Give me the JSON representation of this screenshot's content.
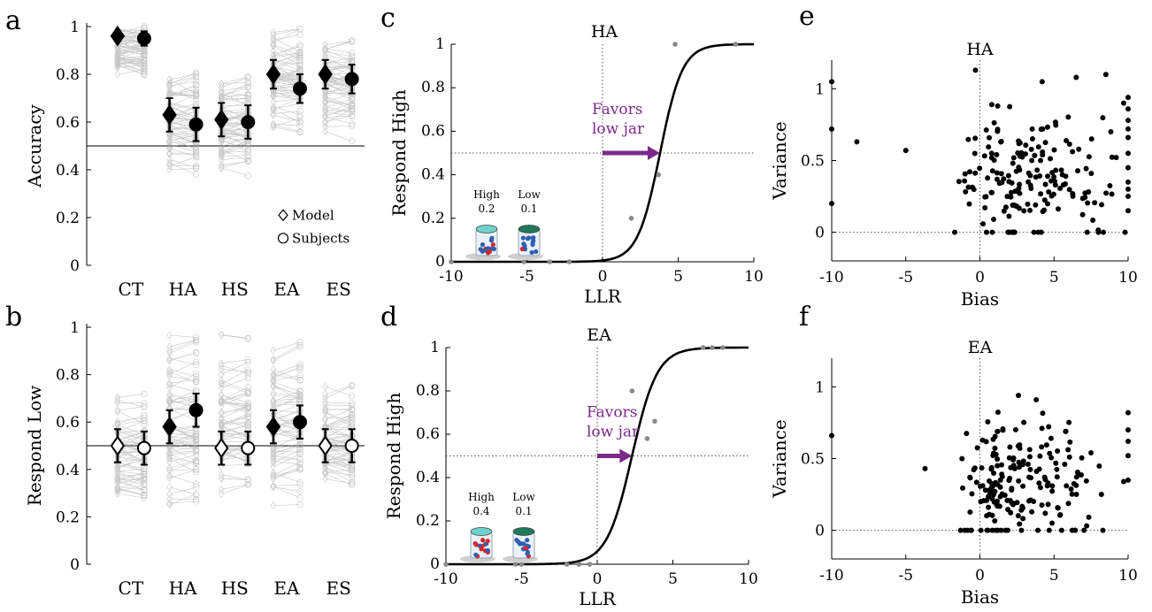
{
  "panels": {
    "a": "a",
    "b": "b",
    "c": "c",
    "d": "d",
    "e": "e",
    "f": "f"
  },
  "chart_data": [
    {
      "id": "a",
      "type": "scatter",
      "ylabel": "Accuracy",
      "xlabel": "",
      "categories": [
        "CT",
        "HA",
        "HS",
        "EA",
        "ES"
      ],
      "ylim": [
        0,
        1
      ],
      "yticks": [
        0,
        0.2,
        0.4,
        0.6,
        0.8,
        1
      ],
      "ytick_labels": [
        "0",
        "0.2",
        "0.4",
        "0.6",
        "0.8",
        "1"
      ],
      "refline": 0.5,
      "series": [
        {
          "name": "Model",
          "marker": "diamond",
          "filled": true,
          "values": [
            0.96,
            0.63,
            0.61,
            0.8,
            0.8
          ],
          "err": [
            0.02,
            0.07,
            0.07,
            0.06,
            0.06
          ]
        },
        {
          "name": "Subjects",
          "marker": "circle",
          "filled": true,
          "values": [
            0.95,
            0.59,
            0.6,
            0.74,
            0.78
          ],
          "err": [
            0.03,
            0.07,
            0.07,
            0.06,
            0.06
          ]
        }
      ],
      "individual_ranges": [
        [
          0.79,
          1.0
        ],
        [
          0.38,
          0.81
        ],
        [
          0.36,
          0.79
        ],
        [
          0.47,
          0.99
        ],
        [
          0.52,
          0.94
        ]
      ],
      "legend": [
        "Model",
        "Subjects"
      ],
      "legend_position": "bottom-right"
    },
    {
      "id": "b",
      "type": "scatter",
      "ylabel": "Respond Low",
      "xlabel": "",
      "categories": [
        "CT",
        "HA",
        "HS",
        "EA",
        "ES"
      ],
      "ylim": [
        0,
        1
      ],
      "yticks": [
        0,
        0.2,
        0.4,
        0.6,
        0.8,
        1
      ],
      "ytick_labels": [
        "0",
        "0.2",
        "0.4",
        "0.6",
        "0.8",
        "1"
      ],
      "refline": 0.5,
      "series": [
        {
          "name": "Model",
          "marker": "diamond",
          "filled": [
            false,
            true,
            false,
            true,
            false
          ],
          "values": [
            0.5,
            0.58,
            0.49,
            0.58,
            0.5
          ],
          "err": [
            0.07,
            0.07,
            0.07,
            0.07,
            0.07
          ]
        },
        {
          "name": "Subjects",
          "marker": "circle",
          "filled": [
            false,
            true,
            false,
            true,
            false
          ],
          "values": [
            0.49,
            0.65,
            0.49,
            0.6,
            0.5
          ],
          "err": [
            0.07,
            0.07,
            0.07,
            0.07,
            0.07
          ]
        }
      ],
      "individual_ranges": [
        [
          0.28,
          0.72
        ],
        [
          0.15,
          1.0
        ],
        [
          0.26,
          1.0
        ],
        [
          0.2,
          0.96
        ],
        [
          0.28,
          0.79
        ]
      ]
    },
    {
      "id": "c",
      "type": "line",
      "title": "HA",
      "xlabel": "LLR",
      "ylabel": "Respond High",
      "xlim": [
        -10,
        10
      ],
      "ylim": [
        0,
        1
      ],
      "xticks": [
        -10,
        -5,
        0,
        5,
        10
      ],
      "xtick_labels": [
        "-10",
        "-5",
        "0",
        "5",
        "10"
      ],
      "yticks": [
        0,
        0.2,
        0.4,
        0.6,
        0.8,
        1
      ],
      "ytick_labels": [
        "0",
        "0.2",
        "0.4",
        "0.6",
        "0.8",
        "1"
      ],
      "curve": {
        "midpoint": 3.8,
        "slope": 1.35
      },
      "points": {
        "x": [
          -10,
          -5.2,
          -3.5,
          -2.2,
          1.9,
          3.7,
          4.8,
          8.8
        ],
        "y": [
          0.0,
          0.0,
          0.0,
          0.0,
          0.2,
          0.4,
          1.0,
          1.0
        ]
      },
      "annotation": {
        "line1": "Favors",
        "line2": "low jar",
        "arrow_from": 0,
        "arrow_to": 3.8,
        "y": 0.5
      },
      "jars": {
        "high_label": "High",
        "high_value": "0.2",
        "low_label": "Low",
        "low_value": "0.1",
        "high_color": "#6fd3cc",
        "low_color": "#1e7a5a",
        "ball_red": "#d62728",
        "ball_blue": "#2f5fb3"
      }
    },
    {
      "id": "d",
      "type": "line",
      "title": "EA",
      "xlabel": "LLR",
      "ylabel": "Respond High",
      "xlim": [
        -10,
        10
      ],
      "ylim": [
        0,
        1
      ],
      "xticks": [
        -10,
        -5,
        0,
        5,
        10
      ],
      "xtick_labels": [
        "-10",
        "-5",
        "0",
        "5",
        "10"
      ],
      "yticks": [
        0,
        0.2,
        0.4,
        0.6,
        0.8,
        1
      ],
      "ytick_labels": [
        "0",
        "0.2",
        "0.4",
        "0.6",
        "0.8",
        "1"
      ],
      "curve": {
        "midpoint": 2.3,
        "slope": 1.2
      },
      "points": {
        "x": [
          -10,
          -5.4,
          -5.0,
          -2.0,
          -1.2,
          -0.5,
          2.3,
          3.3,
          3.8,
          7.0,
          7.6,
          8.3
        ],
        "y": [
          0.0,
          0.0,
          0.0,
          0.0,
          0.0,
          0.0,
          0.8,
          0.58,
          0.66,
          1.0,
          1.0,
          1.0
        ]
      },
      "annotation": {
        "line1": "Favors",
        "line2": "low jar",
        "arrow_from": 0,
        "arrow_to": 2.3,
        "y": 0.5
      },
      "jars": {
        "high_label": "High",
        "high_value": "0.4",
        "low_label": "Low",
        "low_value": "0.1",
        "high_color": "#6fd3cc",
        "low_color": "#1e7a5a",
        "ball_red": "#d62728",
        "ball_blue": "#2f5fb3"
      }
    },
    {
      "id": "e",
      "type": "scatter",
      "title": "HA",
      "xlabel": "Bias",
      "ylabel": "Variance",
      "xlim": [
        -10,
        10
      ],
      "ylim": [
        -0.2,
        1.2
      ],
      "xticks": [
        -10,
        -5,
        0,
        5,
        10
      ],
      "xtick_labels": [
        "-10",
        "-5",
        "0",
        "5",
        "10"
      ],
      "yticks": [
        0,
        0.5,
        1
      ],
      "ytick_labels": [
        "0",
        "0.5",
        "1"
      ],
      "seed": 7,
      "fixed_points": [
        [
          -10,
          1.05
        ],
        [
          -10,
          0.72
        ],
        [
          -10,
          0.2
        ],
        [
          -8.3,
          0.63
        ],
        [
          -5,
          0.57
        ],
        [
          -0.3,
          1.13
        ],
        [
          0.8,
          0.89
        ],
        [
          1.2,
          0.88
        ],
        [
          4.2,
          1.05
        ],
        [
          6.5,
          1.08
        ],
        [
          8.5,
          1.1
        ],
        [
          9.7,
          0.9
        ],
        [
          10,
          0.94
        ],
        [
          10,
          0.86
        ],
        [
          10,
          0.78
        ],
        [
          10,
          0.72
        ],
        [
          10,
          0.66
        ],
        [
          10,
          0.55
        ],
        [
          10,
          0.45
        ],
        [
          10,
          0.35
        ],
        [
          10,
          0.3
        ],
        [
          10,
          0.25
        ],
        [
          10,
          0.15
        ],
        [
          9.8,
          0.0
        ],
        [
          -1.7,
          0.0
        ]
      ],
      "cloud": {
        "count": 175,
        "x_min": -1.8,
        "x_max": 9.5,
        "x_mode": 1.5,
        "y_min": 0.0,
        "y_max": 0.92,
        "y_mode": 0.33
      }
    },
    {
      "id": "f",
      "type": "scatter",
      "title": "EA",
      "xlabel": "Bias",
      "ylabel": "Variance",
      "xlim": [
        -10,
        10
      ],
      "ylim": [
        -0.2,
        1.2
      ],
      "xticks": [
        -10,
        -5,
        0,
        5,
        10
      ],
      "xtick_labels": [
        "-10",
        "-5",
        "0",
        "5",
        "10"
      ],
      "yticks": [
        0,
        0.5,
        1
      ],
      "ytick_labels": [
        "0",
        "0.5",
        "1"
      ],
      "seed": 13,
      "fixed_points": [
        [
          -10,
          0.66
        ],
        [
          -3.7,
          0.43
        ],
        [
          2.6,
          0.94
        ],
        [
          3.8,
          0.91
        ],
        [
          5.8,
          0.69
        ],
        [
          7.5,
          0.54
        ],
        [
          10,
          0.82
        ],
        [
          10,
          0.7
        ],
        [
          10,
          0.62
        ],
        [
          10,
          0.52
        ],
        [
          10,
          0.35
        ],
        [
          9.7,
          0.34
        ],
        [
          8.2,
          0.25
        ],
        [
          8.3,
          0.0
        ],
        [
          -1.3,
          0.0
        ]
      ],
      "cloud": {
        "count": 190,
        "x_min": -1.6,
        "x_max": 8.5,
        "x_mode": 1.2,
        "y_min": 0.0,
        "y_max": 0.85,
        "y_mode": 0.25
      }
    }
  ]
}
